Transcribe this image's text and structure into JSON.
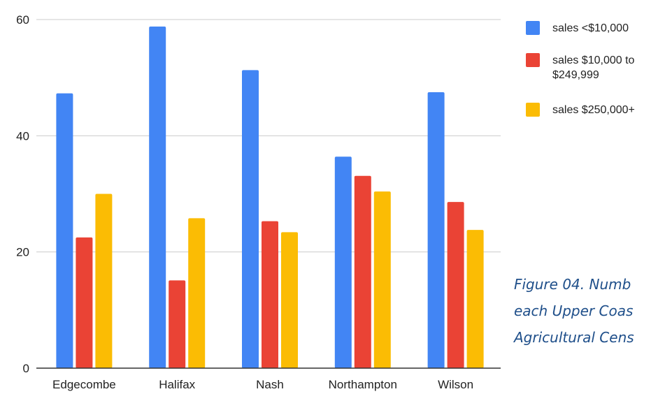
{
  "colors": {
    "series_1": "#4285f4",
    "series_2": "#ea4335",
    "series_3": "#fbbc04",
    "gridline": "#cccccc",
    "axis": "#333333",
    "caption": "#1f4f8a"
  },
  "caption": {
    "lines": [
      "Figure 04.  Numb",
      "each Upper Coas",
      "Agricultural Cens"
    ]
  },
  "chart_data": {
    "type": "bar",
    "title": "",
    "xlabel": "",
    "ylabel": "",
    "categories": [
      "Edgecombe",
      "Halifax",
      "Nash",
      "Northampton",
      "Wilson"
    ],
    "series": [
      {
        "name": "sales <$10,000",
        "values": [
          47.3,
          58.8,
          51.3,
          36.4,
          47.5
        ]
      },
      {
        "name": "sales $10,000 to $249,999",
        "values": [
          22.5,
          15.1,
          25.3,
          33.1,
          28.6
        ]
      },
      {
        "name": "sales $250,000+",
        "values": [
          30.0,
          25.8,
          23.4,
          30.4,
          23.8
        ]
      }
    ],
    "ylim": [
      0,
      60
    ],
    "yticks": [
      0,
      20,
      40,
      60
    ],
    "legend_position": "right",
    "legend_labels": [
      [
        "sales <$10,000"
      ],
      [
        "sales $10,000 to",
        "$249,999"
      ],
      [
        "sales $250,000+"
      ]
    ],
    "grid": true
  }
}
